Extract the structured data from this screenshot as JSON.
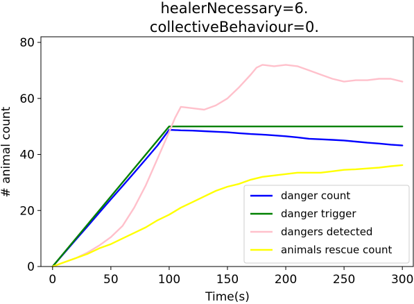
{
  "chart_data": {
    "type": "line",
    "title_lines": [
      "healerNecessary=6.",
      "collectiveBehaviour=0."
    ],
    "xlabel": "Time(s)",
    "ylabel": "# animal count",
    "xlim": [
      -10,
      310
    ],
    "ylim": [
      0,
      82
    ],
    "xticks": [
      0,
      50,
      100,
      150,
      200,
      250,
      300
    ],
    "yticks": [
      0,
      20,
      40,
      60,
      80
    ],
    "grid": false,
    "legend_position": "bottom-right",
    "series": [
      {
        "name": "danger count",
        "color": "#0000ff",
        "x": [
          0,
          10,
          20,
          30,
          40,
          50,
          60,
          70,
          80,
          90,
          100,
          110,
          120,
          130,
          140,
          150,
          160,
          170,
          180,
          190,
          200,
          210,
          220,
          230,
          240,
          250,
          260,
          270,
          280,
          290,
          300
        ],
        "y": [
          0,
          4.8,
          9.6,
          14.4,
          19.2,
          24,
          28.7,
          33.5,
          38.3,
          43.2,
          48.8,
          48.6,
          48.5,
          48.3,
          48.1,
          47.9,
          47.6,
          47.3,
          47.1,
          46.8,
          46.5,
          46.1,
          45.6,
          45.4,
          45.2,
          45,
          44.6,
          44.2,
          43.9,
          43.5,
          43.2
        ]
      },
      {
        "name": "danger trigger",
        "color": "#008000",
        "x": [
          0,
          100,
          300
        ],
        "y": [
          0,
          50,
          50
        ]
      },
      {
        "name": "dangers detected",
        "color": "#ffc0cb",
        "x": [
          0,
          10,
          20,
          30,
          40,
          50,
          60,
          70,
          80,
          90,
          100,
          105,
          110,
          120,
          130,
          140,
          150,
          160,
          170,
          175,
          180,
          190,
          200,
          210,
          220,
          230,
          240,
          250,
          260,
          270,
          280,
          290,
          300
        ],
        "y": [
          0,
          1.5,
          3,
          5,
          7.5,
          10.5,
          14.5,
          21,
          29,
          38.5,
          48,
          53,
          57,
          56.5,
          56,
          57.5,
          60,
          64,
          68.5,
          71,
          72,
          71.5,
          72,
          71.5,
          70,
          68.5,
          67,
          66,
          66.5,
          66.5,
          67,
          67,
          66
        ]
      },
      {
        "name": "animals rescue count",
        "color": "#ffff00",
        "x": [
          0,
          10,
          20,
          30,
          40,
          50,
          60,
          70,
          80,
          90,
          100,
          110,
          120,
          130,
          140,
          150,
          160,
          170,
          180,
          190,
          200,
          210,
          220,
          230,
          240,
          250,
          260,
          270,
          280,
          290,
          300
        ],
        "y": [
          0,
          1.5,
          3,
          4.5,
          6.5,
          8,
          10,
          12,
          14,
          16.5,
          18.5,
          21,
          23,
          25,
          27,
          28.5,
          29.5,
          31,
          32,
          32.5,
          33,
          33.5,
          33.5,
          33.5,
          34,
          34.5,
          34.7,
          35,
          35.3,
          35.8,
          36.2
        ]
      }
    ]
  }
}
